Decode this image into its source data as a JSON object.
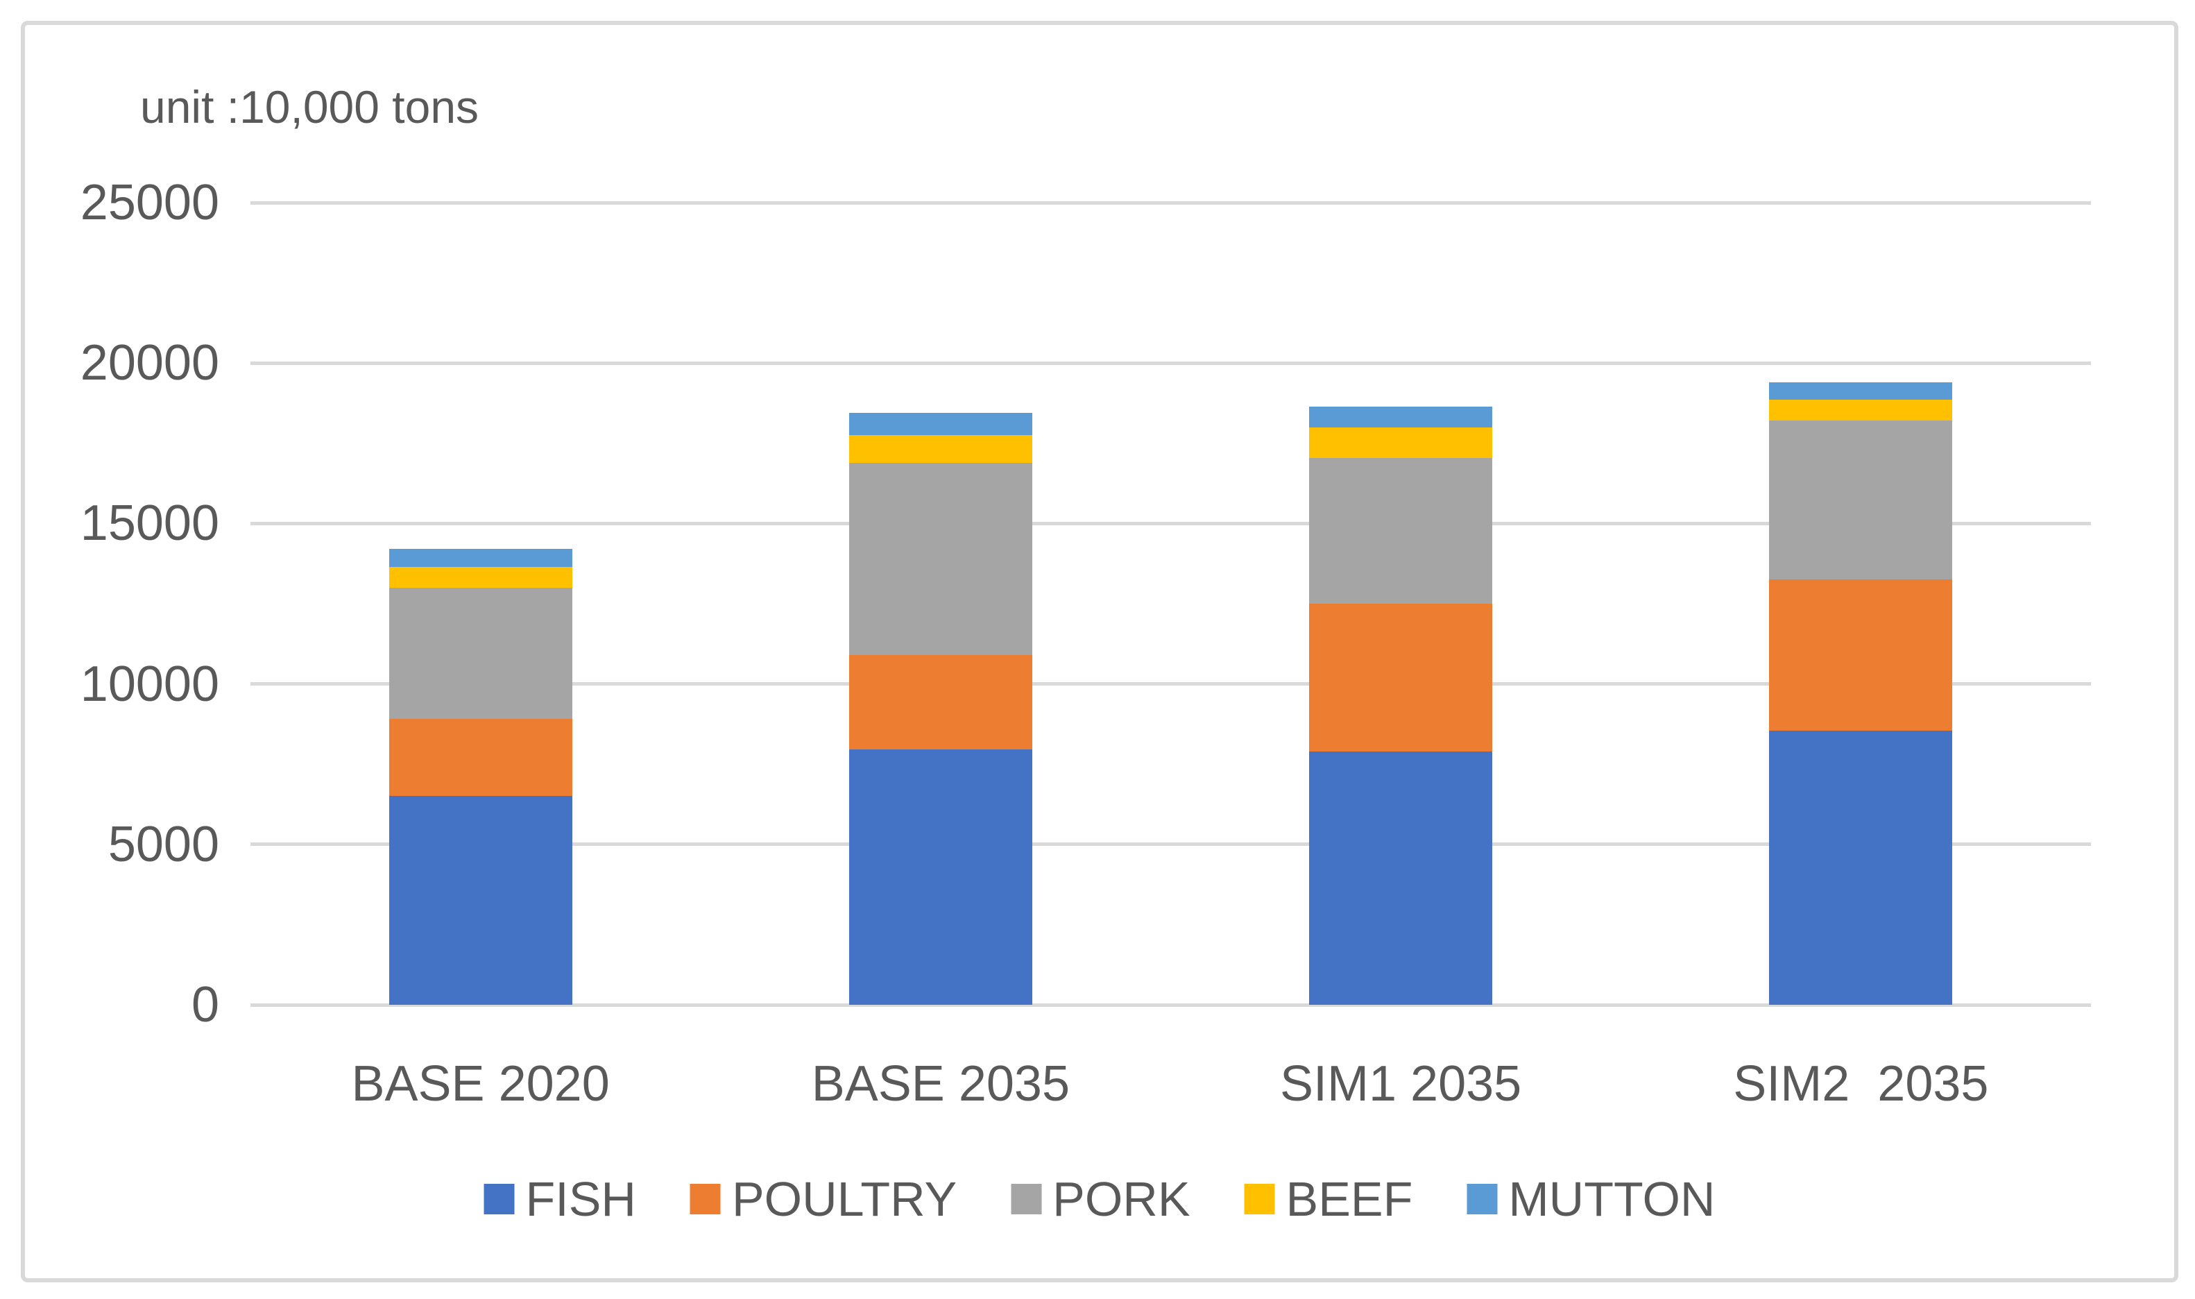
{
  "unit_note": "unit :10,000 tons",
  "chart_data": {
    "type": "bar",
    "stacked": true,
    "title": "unit :10,000 tons",
    "xlabel": "",
    "ylabel": "",
    "categories": [
      "BASE 2020",
      "BASE 2035",
      "SIM1 2035",
      "SIM2  2035"
    ],
    "series": [
      {
        "name": "FISH",
        "color": "#4472C4",
        "values": [
          6500,
          7950,
          7900,
          8550
        ]
      },
      {
        "name": "POULTRY",
        "color": "#ED7D31",
        "values": [
          2400,
          2950,
          4600,
          4700
        ]
      },
      {
        "name": "PORK",
        "color": "#A5A5A5",
        "values": [
          4100,
          6000,
          4550,
          4950
        ]
      },
      {
        "name": "BEEF",
        "color": "#FFC000",
        "values": [
          650,
          850,
          950,
          650
        ]
      },
      {
        "name": "MUTTON",
        "color": "#5B9BD5",
        "values": [
          550,
          700,
          650,
          550
        ]
      }
    ],
    "stack_totals": [
      14200,
      18450,
      18650,
      19400
    ],
    "ylim": [
      0,
      25000
    ],
    "yticks": [
      0,
      5000,
      10000,
      15000,
      20000,
      25000
    ],
    "grid": true,
    "legend_position": "bottom",
    "legend_order": [
      "FISH",
      "POULTRY",
      "PORK",
      "BEEF",
      "MUTTON"
    ],
    "style": {
      "gridline_color": "#D9D9D9",
      "axis_text_color": "#595959",
      "frame_border_color": "#D9D9D9",
      "background": "#FFFFFF"
    }
  }
}
